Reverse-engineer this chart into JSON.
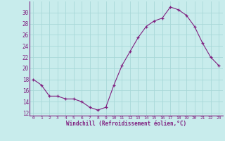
{
  "x": [
    0,
    1,
    2,
    3,
    4,
    5,
    6,
    7,
    8,
    9,
    10,
    11,
    12,
    13,
    14,
    15,
    16,
    17,
    18,
    19,
    20,
    21,
    22,
    23
  ],
  "y": [
    18,
    17,
    15,
    15,
    14.5,
    14.5,
    14,
    13,
    12.5,
    13,
    17,
    20.5,
    23,
    25.5,
    27.5,
    28.5,
    29,
    31,
    30.5,
    29.5,
    27.5,
    24.5,
    22,
    20.5
  ],
  "line_color": "#802080",
  "marker_color": "#802080",
  "bg_color": "#c8ecec",
  "grid_color": "#a8d8d8",
  "xlabel": "Windchill (Refroidissement éolien,°C)",
  "xlabel_color": "#802080",
  "tick_color": "#802080",
  "spine_color": "#802080",
  "ylim": [
    11.5,
    32
  ],
  "yticks": [
    12,
    14,
    16,
    18,
    20,
    22,
    24,
    26,
    28,
    30
  ],
  "xticks": [
    0,
    1,
    2,
    3,
    4,
    5,
    6,
    7,
    8,
    9,
    10,
    11,
    12,
    13,
    14,
    15,
    16,
    17,
    18,
    19,
    20,
    21,
    22,
    23
  ],
  "xticklabels": [
    "0",
    "1",
    "2",
    "3",
    "4",
    "5",
    "6",
    "7",
    "8",
    "9",
    "10",
    "11",
    "12",
    "13",
    "14",
    "15",
    "16",
    "17",
    "18",
    "19",
    "20",
    "21",
    "22",
    "23"
  ]
}
